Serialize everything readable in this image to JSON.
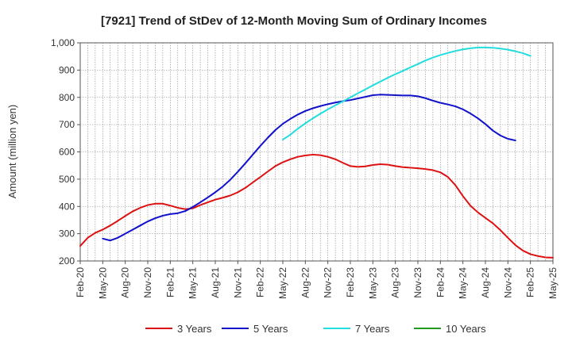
{
  "chart_data": {
    "type": "line",
    "title": "[7921]  Trend of StDev of 12-Month Moving Sum of Ordinary Incomes",
    "xlabel": "",
    "ylabel": "Amount (million yen)",
    "ylim": [
      200,
      1000
    ],
    "yticks": [
      200,
      300,
      400,
      500,
      600,
      700,
      800,
      900,
      1000
    ],
    "ytick_labels": [
      "200",
      "300",
      "400",
      "500",
      "600",
      "700",
      "800",
      "900",
      "1,000"
    ],
    "x_start": "2020-02",
    "x_end": "2025-05",
    "x_tick_labels": [
      "Feb-20",
      "May-20",
      "Aug-20",
      "Nov-20",
      "Feb-21",
      "May-21",
      "Aug-21",
      "Nov-21",
      "Feb-22",
      "May-22",
      "Aug-22",
      "Nov-22",
      "Feb-23",
      "May-23",
      "Aug-23",
      "Nov-23",
      "Feb-24",
      "May-24",
      "Aug-24",
      "Nov-24",
      "Feb-25",
      "May-25"
    ],
    "grid": true,
    "legend_position": "bottom",
    "series": [
      {
        "name": "3 Years",
        "color": "#dd1111",
        "start": "2020-02",
        "values": [
          255,
          285,
          303,
          315,
          330,
          347,
          365,
          382,
          395,
          405,
          410,
          410,
          403,
          395,
          390,
          393,
          405,
          415,
          425,
          432,
          440,
          452,
          468,
          488,
          508,
          528,
          548,
          562,
          573,
          582,
          587,
          590,
          588,
          582,
          573,
          560,
          548,
          545,
          547,
          552,
          555,
          553,
          548,
          544,
          542,
          540,
          537,
          533,
          525,
          508,
          478,
          438,
          403,
          378,
          358,
          338,
          313,
          285,
          258,
          238,
          225,
          218,
          213,
          212
        ]
      },
      {
        "name": "5 Years",
        "color": "#1111cc",
        "start": "2020-05",
        "values": [
          282,
          275,
          285,
          300,
          315,
          330,
          345,
          357,
          366,
          372,
          375,
          383,
          398,
          415,
          433,
          452,
          473,
          498,
          527,
          558,
          590,
          622,
          652,
          680,
          703,
          721,
          737,
          750,
          760,
          768,
          775,
          781,
          786,
          790,
          796,
          802,
          808,
          810,
          809,
          808,
          807,
          807,
          804,
          797,
          788,
          780,
          774,
          767,
          756,
          741,
          723,
          702,
          678,
          660,
          648,
          642
        ]
      },
      {
        "name": "7 Years",
        "color": "#22dddd",
        "start": "2022-05",
        "values": [
          645,
          663,
          685,
          705,
          723,
          740,
          756,
          771,
          785,
          800,
          815,
          829,
          844,
          858,
          872,
          885,
          897,
          910,
          922,
          935,
          946,
          955,
          963,
          970,
          976,
          980,
          983,
          983,
          982,
          979,
          975,
          969,
          962,
          952
        ]
      },
      {
        "name": "10 Years",
        "color": "#229922",
        "start": "2020-02",
        "values": []
      }
    ]
  }
}
